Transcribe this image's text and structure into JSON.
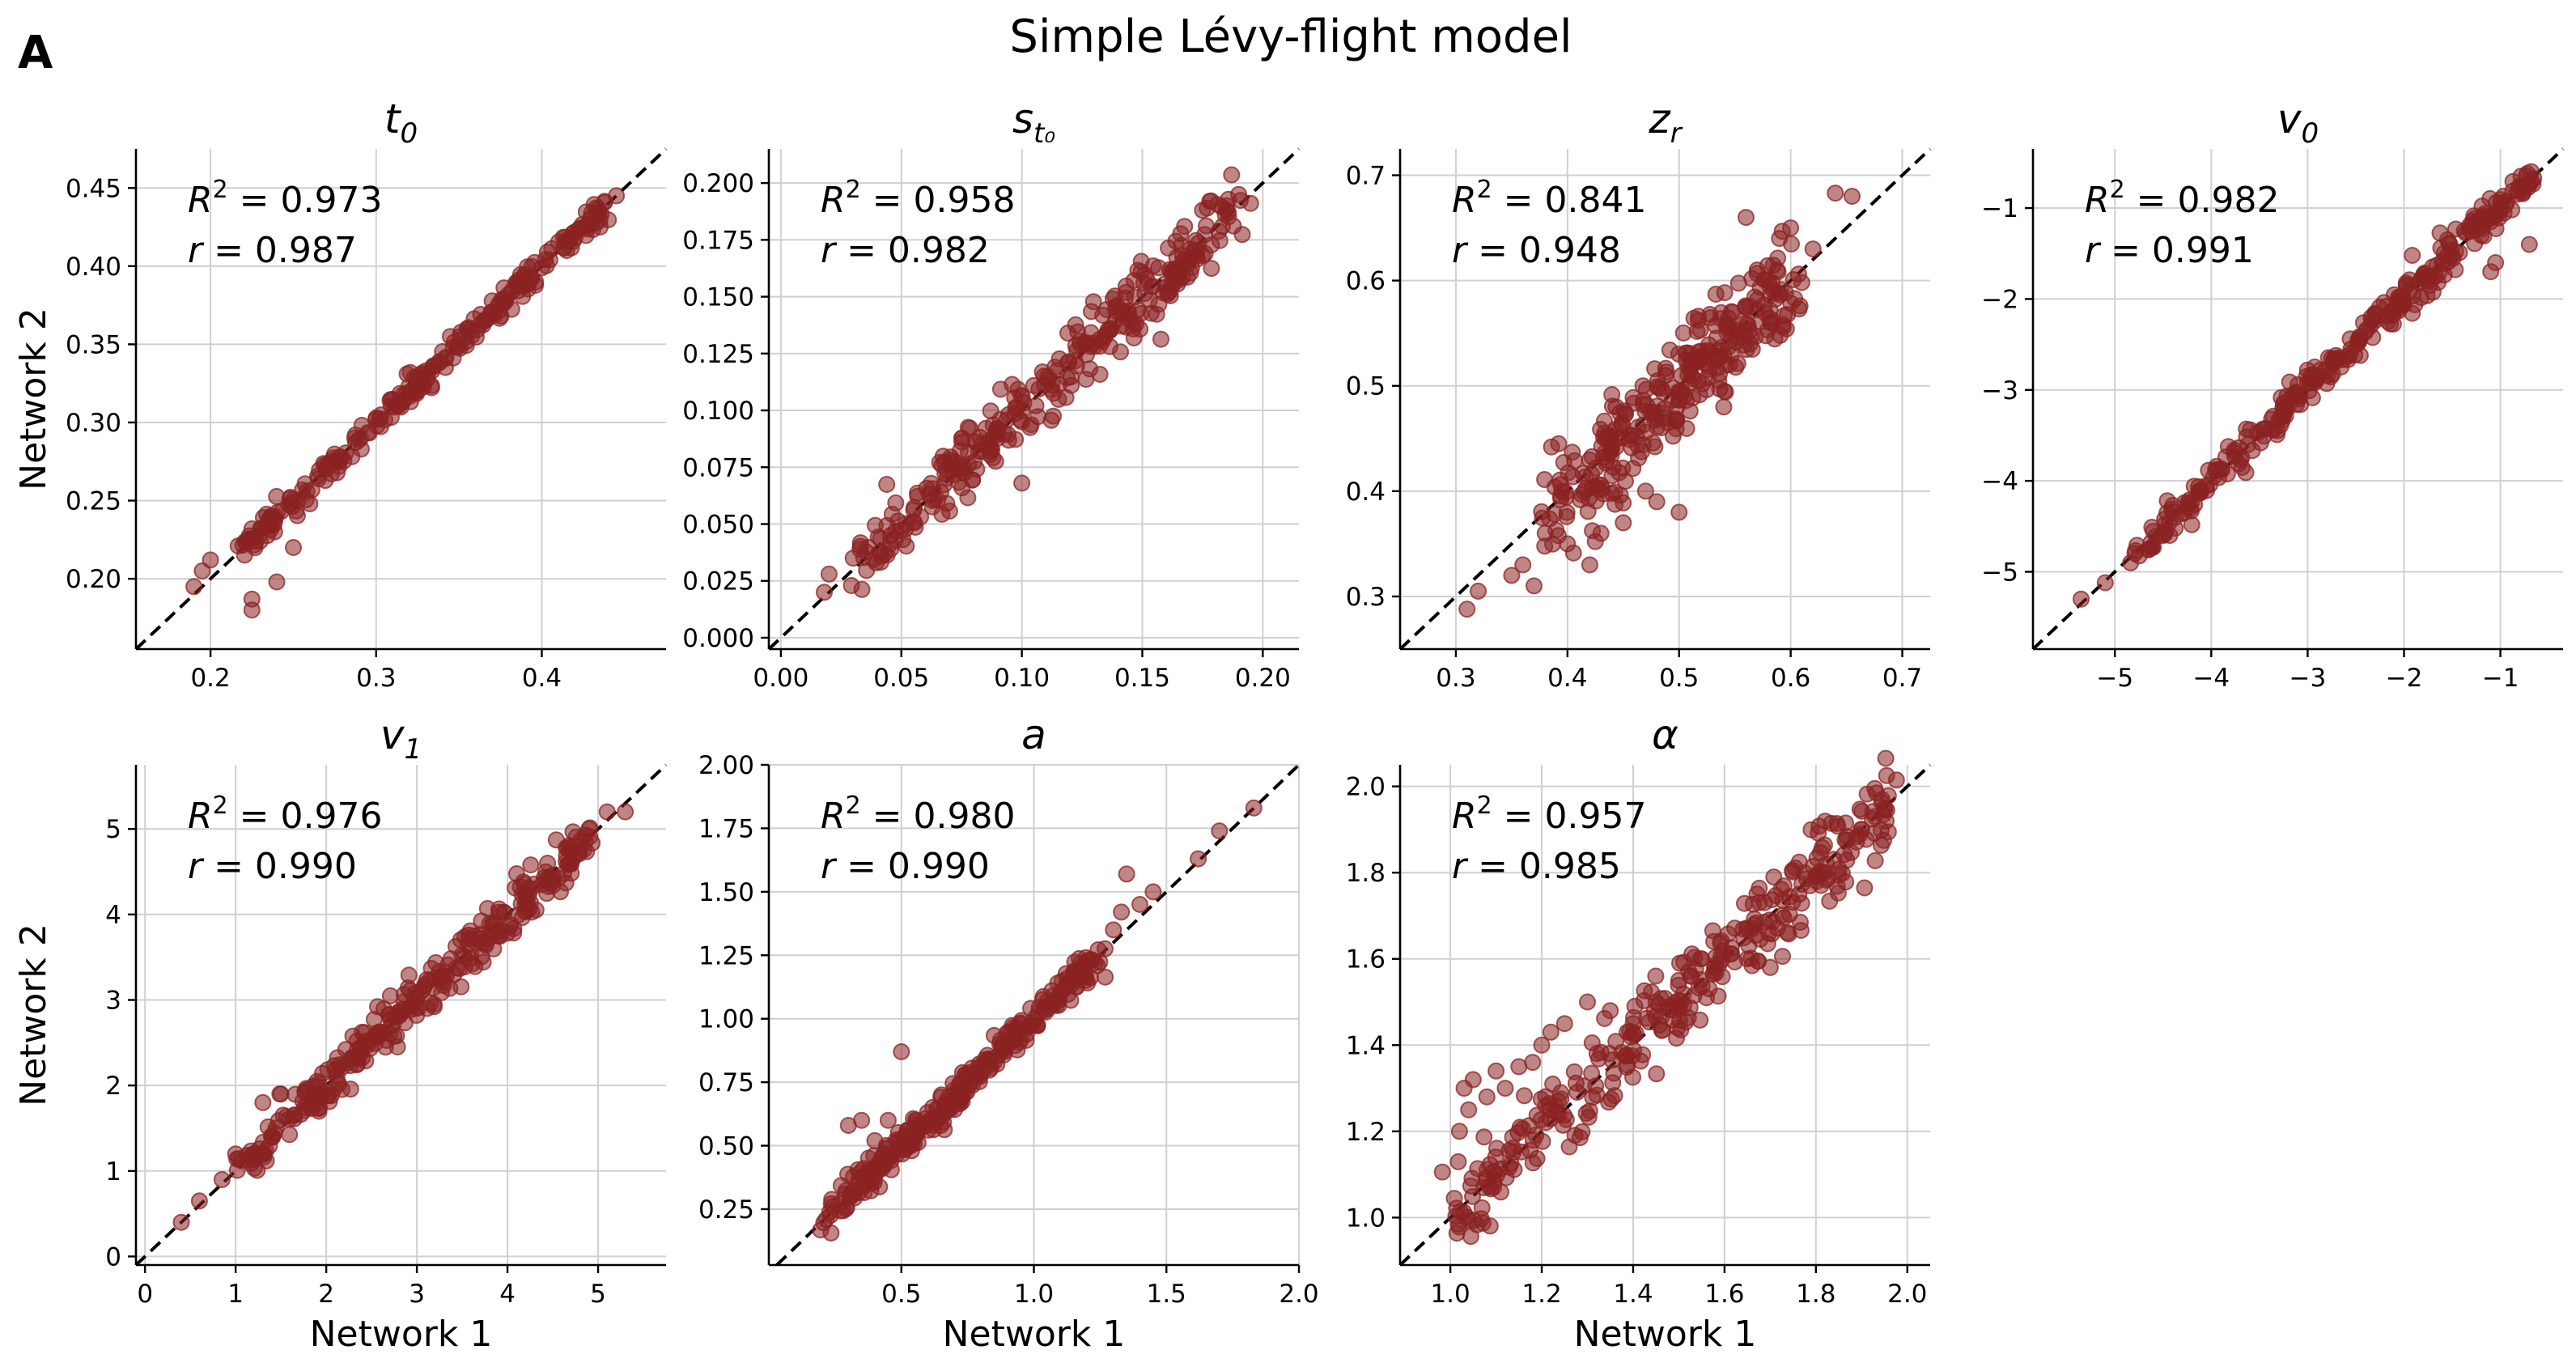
{
  "figure": {
    "panel_letter": "A",
    "title": "Simple Lévy-flight model",
    "xlabel": "Network 1",
    "ylabel": "Network 2",
    "point_color": "#8b2323",
    "point_alpha": 0.55
  },
  "chart_data": [
    {
      "type": "scatter",
      "param": "t0",
      "title": "t",
      "title_sub": "0",
      "r2_label": "= 0.973",
      "r_label": "= 0.987",
      "xlim": [
        0.155,
        0.475
      ],
      "ylim": [
        0.155,
        0.475
      ],
      "xticks": [
        0.2,
        0.3,
        0.4
      ],
      "xtick_labels": [
        "0.2",
        "0.3",
        "0.4"
      ],
      "yticks": [
        0.2,
        0.25,
        0.3,
        0.35,
        0.4,
        0.45
      ],
      "ytick_labels": [
        "0.20",
        "0.25",
        "0.30",
        "0.35",
        "0.40",
        "0.45"
      ],
      "noise": 0.004,
      "n": 260,
      "lo": 0.22,
      "hi": 0.44,
      "outliers": [
        [
          0.19,
          0.195
        ],
        [
          0.195,
          0.205
        ],
        [
          0.2,
          0.212
        ],
        [
          0.225,
          0.18
        ],
        [
          0.225,
          0.187
        ],
        [
          0.24,
          0.198
        ],
        [
          0.25,
          0.22
        ],
        [
          0.235,
          0.234
        ],
        [
          0.26,
          0.248
        ],
        [
          0.445,
          0.445
        ],
        [
          0.42,
          0.418
        ],
        [
          0.415,
          0.41
        ]
      ]
    },
    {
      "type": "scatter",
      "param": "st0",
      "title": "s",
      "title_sub": "t₀",
      "r2_label": "= 0.958",
      "r_label": "= 0.982",
      "xlim": [
        -0.005,
        0.215
      ],
      "ylim": [
        -0.005,
        0.215
      ],
      "xticks": [
        0.0,
        0.05,
        0.1,
        0.15,
        0.2
      ],
      "xtick_labels": [
        "0.00",
        "0.05",
        "0.10",
        "0.15",
        "0.20"
      ],
      "yticks": [
        0.0,
        0.025,
        0.05,
        0.075,
        0.1,
        0.125,
        0.15,
        0.175,
        0.2
      ],
      "ytick_labels": [
        "0.000",
        "0.025",
        "0.050",
        "0.075",
        "0.100",
        "0.125",
        "0.150",
        "0.175",
        "0.200"
      ],
      "noise": 0.007,
      "n": 300,
      "lo": 0.03,
      "hi": 0.19,
      "outliers": [
        [
          0.018,
          0.02
        ],
        [
          0.02,
          0.028
        ],
        [
          0.03,
          0.035
        ],
        [
          0.1,
          0.068
        ],
        [
          0.19,
          0.195
        ],
        [
          0.185,
          0.19
        ],
        [
          0.178,
          0.192
        ],
        [
          0.175,
          0.188
        ]
      ]
    },
    {
      "type": "scatter",
      "param": "zr",
      "title": "z",
      "title_sub": "r",
      "r2_label": "= 0.841",
      "r_label": "= 0.948",
      "xlim": [
        0.25,
        0.725
      ],
      "ylim": [
        0.25,
        0.725
      ],
      "xticks": [
        0.3,
        0.4,
        0.5,
        0.6,
        0.7
      ],
      "xtick_labels": [
        "0.3",
        "0.4",
        "0.5",
        "0.6",
        "0.7"
      ],
      "yticks": [
        0.3,
        0.4,
        0.5,
        0.6,
        0.7
      ],
      "ytick_labels": [
        "0.3",
        "0.4",
        "0.5",
        "0.6",
        "0.7"
      ],
      "noise": 0.022,
      "n": 300,
      "lo": 0.38,
      "hi": 0.6,
      "outliers": [
        [
          0.31,
          0.288
        ],
        [
          0.32,
          0.305
        ],
        [
          0.35,
          0.32
        ],
        [
          0.36,
          0.33
        ],
        [
          0.37,
          0.31
        ],
        [
          0.38,
          0.36
        ],
        [
          0.4,
          0.35
        ],
        [
          0.42,
          0.33
        ],
        [
          0.43,
          0.36
        ],
        [
          0.48,
          0.39
        ],
        [
          0.45,
          0.37
        ],
        [
          0.64,
          0.683
        ],
        [
          0.655,
          0.68
        ],
        [
          0.62,
          0.63
        ],
        [
          0.6,
          0.65
        ],
        [
          0.58,
          0.6
        ],
        [
          0.57,
          0.61
        ],
        [
          0.56,
          0.66
        ],
        [
          0.59,
          0.64
        ],
        [
          0.5,
          0.38
        ],
        [
          0.47,
          0.4
        ],
        [
          0.54,
          0.48
        ]
      ]
    },
    {
      "type": "scatter",
      "param": "v0",
      "title": "v",
      "title_sub": "0",
      "r2_label": "= 0.982",
      "r_label": "= 0.991",
      "xlim": [
        -5.85,
        -0.35
      ],
      "ylim": [
        -5.85,
        -0.35
      ],
      "xticks": [
        -5,
        -4,
        -3,
        -2,
        -1
      ],
      "xtick_labels": [
        "−5",
        "−4",
        "−3",
        "−2",
        "−1"
      ],
      "yticks": [
        -5,
        -4,
        -3,
        -2,
        -1
      ],
      "ytick_labels": [
        "−5",
        "−4",
        "−3",
        "−2",
        "−1"
      ],
      "noise": 0.09,
      "n": 300,
      "lo": -4.8,
      "hi": -0.7,
      "outliers": [
        [
          -5.35,
          -5.3
        ],
        [
          -5.1,
          -5.12
        ],
        [
          -0.7,
          -1.4
        ],
        [
          -0.68,
          -0.6
        ],
        [
          -0.72,
          -0.62
        ],
        [
          -1.2,
          -1.3
        ],
        [
          -1.3,
          -1.2
        ],
        [
          -1.1,
          -1.7
        ],
        [
          -1.05,
          -1.6
        ]
      ]
    },
    {
      "type": "scatter",
      "param": "v1",
      "title": "v",
      "title_sub": "1",
      "r2_label": "= 0.976",
      "r_label": "= 0.990",
      "xlim": [
        -0.1,
        5.75
      ],
      "ylim": [
        -0.1,
        5.75
      ],
      "xticks": [
        0,
        1,
        2,
        3,
        4,
        5
      ],
      "xtick_labels": [
        "0",
        "1",
        "2",
        "3",
        "4",
        "5"
      ],
      "yticks": [
        0,
        1,
        2,
        3,
        4,
        5
      ],
      "ytick_labels": [
        "0",
        "1",
        "2",
        "3",
        "4",
        "5"
      ],
      "noise": 0.12,
      "n": 300,
      "lo": 1.0,
      "hi": 4.9,
      "outliers": [
        [
          0.4,
          0.4
        ],
        [
          0.6,
          0.65
        ],
        [
          0.85,
          0.9
        ],
        [
          1.0,
          1.2
        ],
        [
          5.1,
          5.2
        ],
        [
          5.3,
          5.2
        ],
        [
          4.9,
          5.0
        ],
        [
          1.3,
          1.8
        ],
        [
          1.5,
          1.9
        ]
      ]
    },
    {
      "type": "scatter",
      "param": "a",
      "title": "a",
      "title_sub": "",
      "r2_label": "= 0.980",
      "r_label": "= 0.990",
      "xlim": [
        0.0,
        2.0
      ],
      "ylim": [
        0.03,
        2.0
      ],
      "xticks": [
        0.5,
        1.0,
        1.5,
        2.0
      ],
      "xtick_labels": [
        "0.5",
        "1.0",
        "1.5",
        "2.0"
      ],
      "yticks": [
        0.25,
        0.5,
        0.75,
        1.0,
        1.25,
        1.5,
        1.75,
        2.0
      ],
      "ytick_labels": [
        "0.25",
        "0.50",
        "0.75",
        "1.00",
        "1.25",
        "1.50",
        "1.75",
        "2.00"
      ],
      "noise": 0.03,
      "n": 300,
      "lo": 0.2,
      "hi": 1.25,
      "outliers": [
        [
          0.5,
          0.87
        ],
        [
          0.3,
          0.58
        ],
        [
          0.35,
          0.6
        ],
        [
          0.4,
          0.52
        ],
        [
          1.35,
          1.57
        ],
        [
          1.33,
          1.42
        ],
        [
          1.45,
          1.5
        ],
        [
          1.62,
          1.63
        ],
        [
          1.7,
          1.74
        ],
        [
          1.83,
          1.83
        ],
        [
          1.3,
          1.35
        ],
        [
          1.4,
          1.45
        ],
        [
          0.45,
          0.6
        ]
      ]
    },
    {
      "type": "scatter",
      "param": "alpha",
      "title": "α",
      "title_sub": "",
      "r2_label": "= 0.957",
      "r_label": "= 0.985",
      "xlim": [
        0.89,
        2.05
      ],
      "ylim": [
        0.89,
        2.05
      ],
      "xticks": [
        1.0,
        1.2,
        1.4,
        1.6,
        1.8,
        2.0
      ],
      "xtick_labels": [
        "1.0",
        "1.2",
        "1.4",
        "1.6",
        "1.8",
        "2.0"
      ],
      "yticks": [
        1.0,
        1.2,
        1.4,
        1.6,
        1.8,
        2.0
      ],
      "ytick_labels": [
        "1.0",
        "1.2",
        "1.4",
        "1.6",
        "1.8",
        "2.0"
      ],
      "noise": 0.045,
      "n": 320,
      "lo": 1.0,
      "hi": 1.95,
      "outliers": [
        [
          1.03,
          1.3
        ],
        [
          1.05,
          1.32
        ],
        [
          1.1,
          1.34
        ],
        [
          1.15,
          1.35
        ],
        [
          1.2,
          1.4
        ],
        [
          1.3,
          1.5
        ],
        [
          1.25,
          1.45
        ],
        [
          1.02,
          1.2
        ],
        [
          1.04,
          1.25
        ],
        [
          1.08,
          1.28
        ],
        [
          1.12,
          1.3
        ],
        [
          1.18,
          1.36
        ],
        [
          1.22,
          1.43
        ],
        [
          1.35,
          1.48
        ],
        [
          1.5,
          1.55
        ],
        [
          1.55,
          1.6
        ],
        [
          1.65,
          1.6
        ],
        [
          1.7,
          1.58
        ],
        [
          1.9,
          1.9
        ],
        [
          1.95,
          1.95
        ],
        [
          1.4,
          1.45
        ],
        [
          1.45,
          1.5
        ]
      ]
    }
  ]
}
